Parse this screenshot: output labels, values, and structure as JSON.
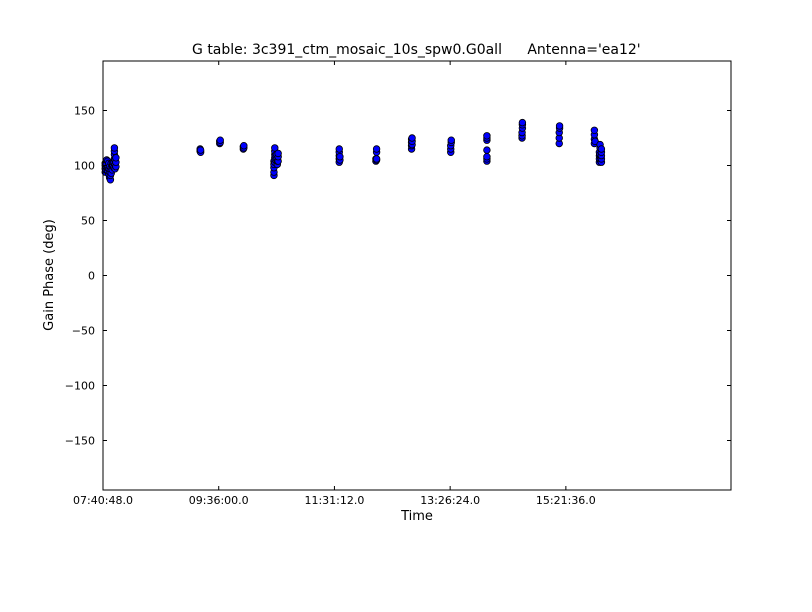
{
  "chart_data": {
    "type": "scatter",
    "title": "G table: 3c391_ctm_mosaic_10s_spw0.G0all",
    "antenna_label": "Antenna='ea12'",
    "xlabel": "Time",
    "ylabel": "Gain Phase (deg)",
    "xlim": [
      "07:40:48.0",
      "18:06:00.0"
    ],
    "ylim": [
      -195,
      195
    ],
    "x_ticks": [
      "07:40:48.0",
      "09:36:00.0",
      "11:31:12.0",
      "13:26:24.0",
      "15:21:36.0"
    ],
    "y_ticks": [
      150,
      100,
      50,
      0,
      -50,
      -100,
      -150
    ],
    "grid": false,
    "colors": {
      "marker_fill": "#0000ff",
      "marker_edge": "#000000"
    },
    "series": [
      {
        "points": [
          [
            "07:43:00",
            94
          ],
          [
            "07:43:00",
            97
          ],
          [
            "07:43:00",
            100
          ],
          [
            "07:43:00",
            102
          ],
          [
            "07:44:00",
            96
          ],
          [
            "07:44:00",
            99
          ],
          [
            "07:44:00",
            101
          ],
          [
            "07:44:30",
            105
          ],
          [
            "07:45:30",
            95
          ],
          [
            "07:45:30",
            98
          ],
          [
            "07:45:30",
            104
          ],
          [
            "07:46:30",
            92
          ],
          [
            "07:46:30",
            97
          ],
          [
            "07:46:30",
            102
          ],
          [
            "07:47:20",
            89
          ],
          [
            "07:47:20",
            94
          ],
          [
            "07:47:20",
            99
          ],
          [
            "07:48:10",
            87
          ],
          [
            "07:48:10",
            91
          ],
          [
            "07:48:10",
            96
          ],
          [
            "07:49:00",
            93
          ],
          [
            "07:49:00",
            98
          ],
          [
            "07:49:00",
            102
          ],
          [
            "07:50:00",
            96
          ],
          [
            "07:50:00",
            100
          ],
          [
            "07:50:40",
            100
          ],
          [
            "07:50:40",
            103
          ],
          [
            "07:51:40",
            98
          ],
          [
            "07:51:40",
            103
          ],
          [
            "07:52:10",
            106
          ],
          [
            "07:52:10",
            110
          ],
          [
            "07:52:10",
            113
          ],
          [
            "07:52:10",
            116
          ],
          [
            "07:52:50",
            97
          ],
          [
            "07:52:50",
            101
          ],
          [
            "07:52:50",
            105
          ],
          [
            "07:53:40",
            99
          ],
          [
            "07:53:40",
            103
          ],
          [
            "07:53:40",
            107
          ],
          [
            "09:17:30",
            113
          ],
          [
            "09:17:30",
            115
          ],
          [
            "09:18:00",
            112
          ],
          [
            "09:18:00",
            114
          ],
          [
            "09:37:00",
            120
          ],
          [
            "09:37:00",
            122
          ],
          [
            "09:37:30",
            121
          ],
          [
            "09:37:30",
            123
          ],
          [
            "10:00:30",
            115
          ],
          [
            "10:00:30",
            117
          ],
          [
            "10:01:00",
            116
          ],
          [
            "10:01:00",
            118
          ],
          [
            "10:31:00",
            91
          ],
          [
            "10:31:00",
            94
          ],
          [
            "10:31:00",
            98
          ],
          [
            "10:31:00",
            101
          ],
          [
            "10:31:00",
            104
          ],
          [
            "10:31:50",
            103
          ],
          [
            "10:31:50",
            107
          ],
          [
            "10:31:50",
            110
          ],
          [
            "10:31:50",
            113
          ],
          [
            "10:31:50",
            116
          ],
          [
            "10:32:30",
            105
          ],
          [
            "10:32:30",
            109
          ],
          [
            "10:33:30",
            106
          ],
          [
            "10:33:30",
            110
          ],
          [
            "10:34:20",
            101
          ],
          [
            "10:34:20",
            104
          ],
          [
            "10:35:10",
            104
          ],
          [
            "10:35:10",
            108
          ],
          [
            "10:35:10",
            111
          ],
          [
            "11:36:00",
            103
          ],
          [
            "11:36:00",
            106
          ],
          [
            "11:36:00",
            109
          ],
          [
            "11:36:00",
            112
          ],
          [
            "11:36:00",
            115
          ],
          [
            "11:36:40",
            105
          ],
          [
            "11:36:40",
            108
          ],
          [
            "12:12:30",
            104
          ],
          [
            "12:12:30",
            106
          ],
          [
            "12:13:10",
            105
          ],
          [
            "12:13:10",
            106
          ],
          [
            "12:13:10",
            112
          ],
          [
            "12:13:10",
            115
          ],
          [
            "12:48:00",
            115
          ],
          [
            "12:48:00",
            118
          ],
          [
            "12:48:00",
            121
          ],
          [
            "12:48:00",
            124
          ],
          [
            "12:48:30",
            119
          ],
          [
            "12:48:30",
            122
          ],
          [
            "12:48:30",
            125
          ],
          [
            "13:27:00",
            112
          ],
          [
            "13:27:00",
            115
          ],
          [
            "13:27:00",
            118
          ],
          [
            "13:27:30",
            121
          ],
          [
            "13:27:30",
            123
          ],
          [
            "14:03:00",
            104
          ],
          [
            "14:03:00",
            106
          ],
          [
            "14:03:00",
            108
          ],
          [
            "14:03:00",
            114
          ],
          [
            "14:03:00",
            123
          ],
          [
            "14:03:00",
            125
          ],
          [
            "14:03:00",
            127
          ],
          [
            "14:38:00",
            125
          ],
          [
            "14:38:00",
            127
          ],
          [
            "14:38:00",
            130
          ],
          [
            "14:38:20",
            134
          ],
          [
            "14:38:20",
            137
          ],
          [
            "14:38:20",
            139
          ],
          [
            "15:15:00",
            120
          ],
          [
            "15:15:00",
            125
          ],
          [
            "15:15:00",
            130
          ],
          [
            "15:15:20",
            134
          ],
          [
            "15:15:20",
            136
          ],
          [
            "15:50:00",
            120
          ],
          [
            "15:50:00",
            124
          ],
          [
            "15:50:00",
            128
          ],
          [
            "15:50:00",
            132
          ],
          [
            "15:50:40",
            122
          ],
          [
            "15:55:00",
            103
          ],
          [
            "15:55:00",
            106
          ],
          [
            "15:55:00",
            109
          ],
          [
            "15:55:00",
            112
          ],
          [
            "15:55:40",
            110
          ],
          [
            "15:55:40",
            116
          ],
          [
            "15:55:40",
            119
          ],
          [
            "15:56:20",
            104
          ],
          [
            "15:56:20",
            107
          ],
          [
            "15:57:00",
            103
          ],
          [
            "15:57:00",
            106
          ],
          [
            "15:57:00",
            109
          ],
          [
            "15:57:00",
            112
          ],
          [
            "15:57:00",
            115
          ]
        ]
      }
    ]
  }
}
